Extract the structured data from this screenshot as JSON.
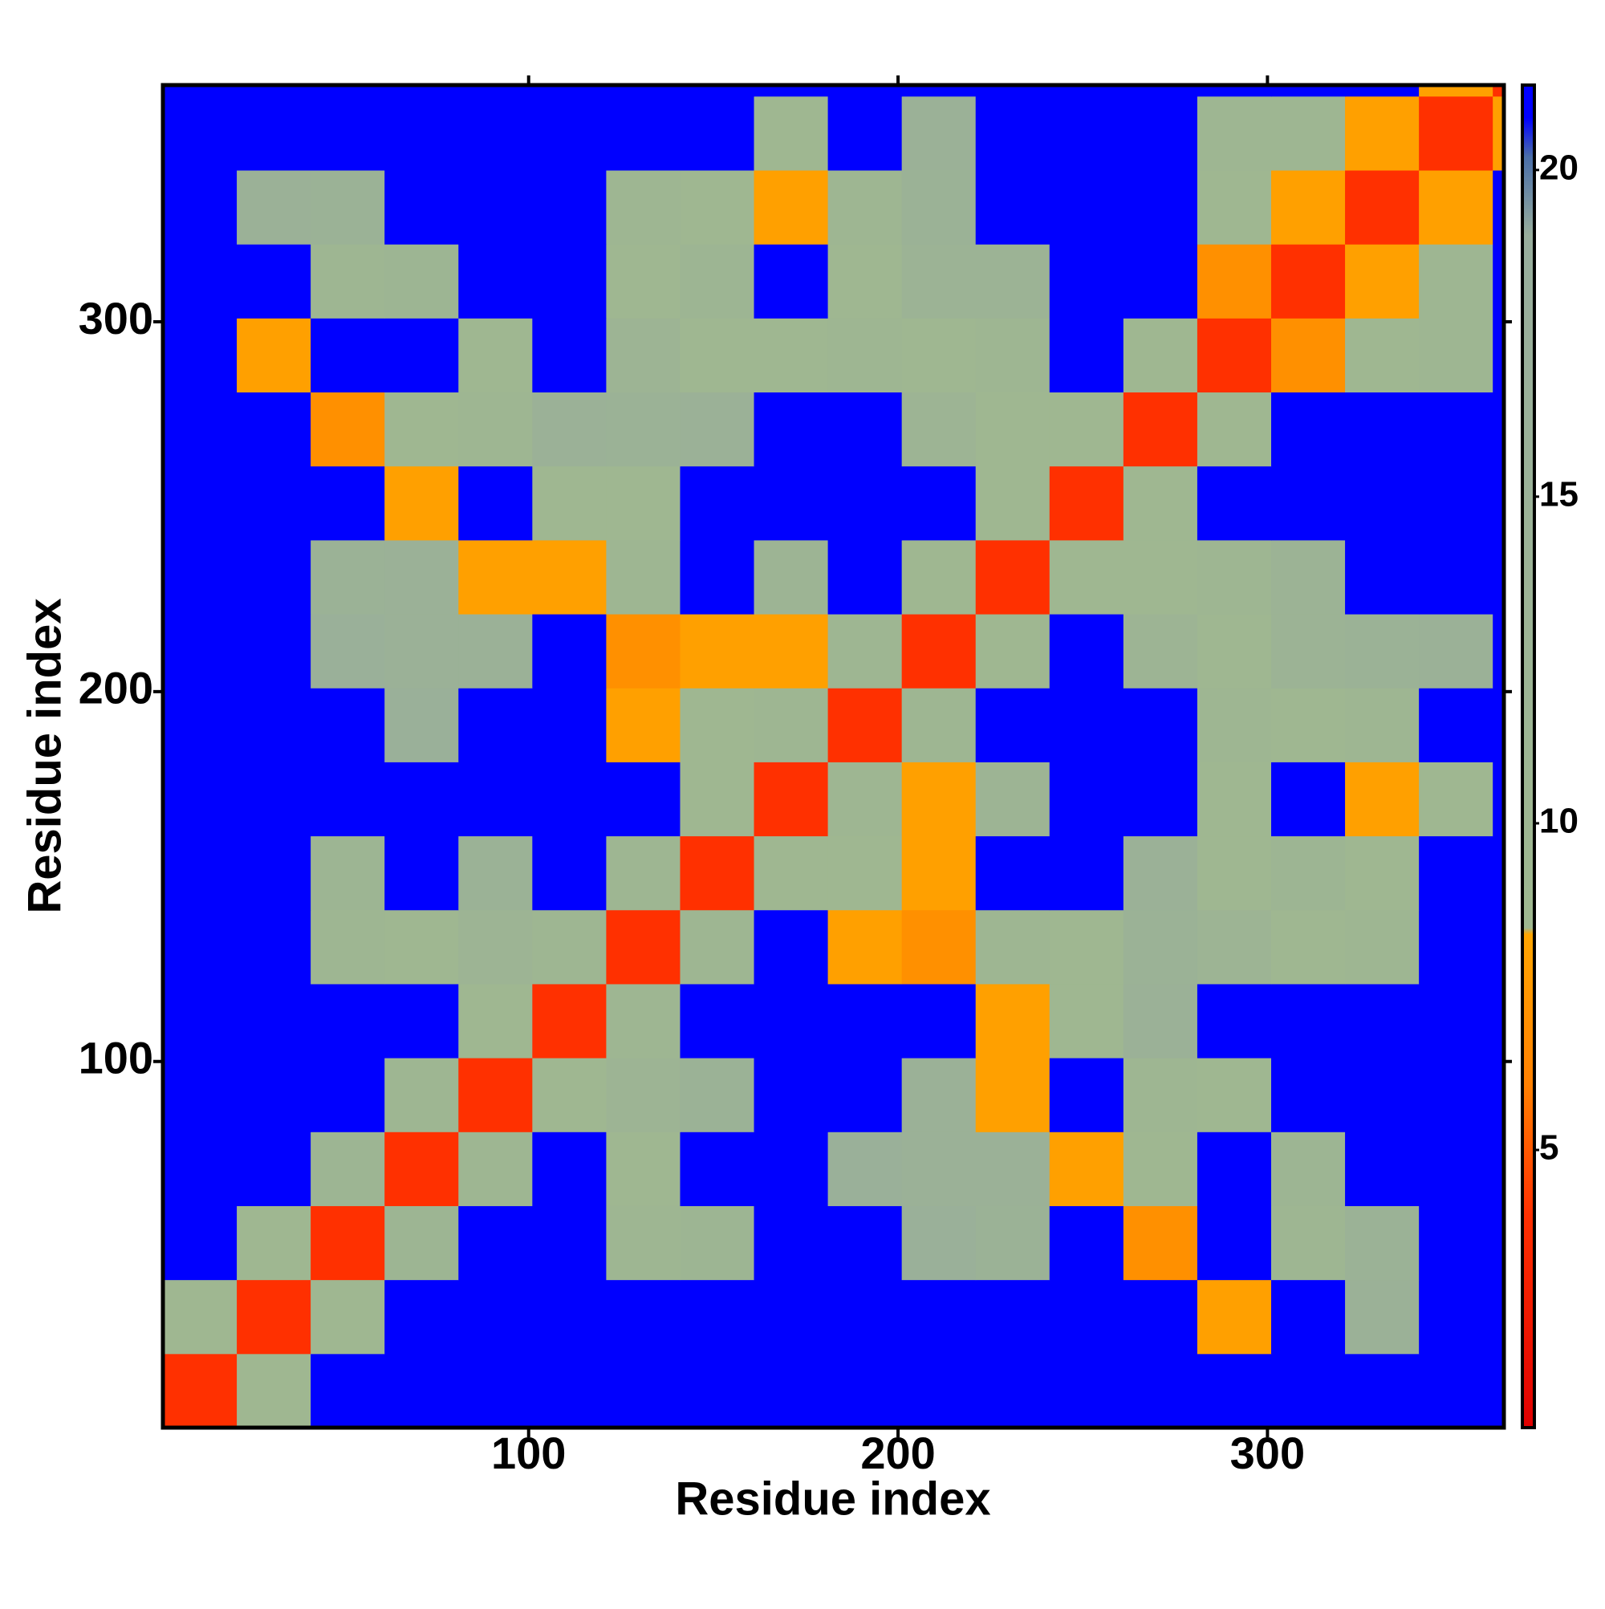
{
  "chart_data": {
    "type": "heatmap",
    "xlabel": "Residue index",
    "ylabel": "Residue index",
    "xlim": [
      1,
      364
    ],
    "ylim": [
      1,
      364
    ],
    "xticks": [
      100,
      200,
      300
    ],
    "yticks": [
      100,
      200,
      300
    ],
    "x_bins": [
      1,
      21,
      41,
      61,
      81,
      101,
      121,
      141,
      161,
      181,
      201,
      221,
      241,
      261,
      281,
      301,
      321,
      341,
      361,
      364
    ],
    "y_bins": [
      1,
      21,
      41,
      61,
      81,
      101,
      121,
      141,
      161,
      181,
      201,
      221,
      241,
      261,
      281,
      301,
      321,
      341,
      361,
      364
    ],
    "z": [
      [
        4,
        9,
        21,
        21,
        21,
        21,
        21,
        21,
        21,
        21,
        21,
        21,
        21,
        21,
        21,
        21,
        21,
        21,
        21
      ],
      [
        9,
        4,
        9,
        21,
        21,
        21,
        21,
        21,
        21,
        21,
        21,
        21,
        21,
        21,
        8,
        21,
        15,
        21,
        21
      ],
      [
        21,
        9,
        4,
        11,
        21,
        21,
        10,
        11,
        21,
        21,
        16,
        14,
        21,
        7,
        21,
        10,
        14,
        21,
        21
      ],
      [
        21,
        21,
        11,
        4,
        10,
        21,
        9,
        21,
        21,
        16,
        15,
        15,
        8,
        9,
        21,
        11,
        21,
        21,
        21
      ],
      [
        21,
        21,
        21,
        10,
        4,
        9,
        12,
        14,
        21,
        21,
        15,
        8,
        21,
        10,
        9,
        21,
        21,
        21,
        21
      ],
      [
        21,
        21,
        21,
        21,
        9,
        4,
        10,
        21,
        21,
        21,
        21,
        8,
        9,
        15,
        21,
        21,
        21,
        21,
        21
      ],
      [
        21,
        21,
        10,
        9,
        12,
        10,
        4,
        10,
        21,
        8,
        7,
        10,
        9,
        14,
        12,
        9,
        10,
        21,
        21
      ],
      [
        21,
        21,
        11,
        21,
        14,
        21,
        10,
        4,
        9,
        9,
        8,
        21,
        21,
        15,
        9,
        11,
        9,
        21,
        21
      ],
      [
        21,
        21,
        21,
        21,
        21,
        21,
        21,
        9,
        4,
        10,
        8,
        12,
        21,
        21,
        9,
        21,
        8,
        9,
        21
      ],
      [
        21,
        21,
        21,
        16,
        21,
        21,
        8,
        9,
        10,
        4,
        10,
        21,
        21,
        21,
        10,
        9,
        10,
        21,
        21
      ],
      [
        21,
        21,
        16,
        15,
        15,
        21,
        7,
        8,
        8,
        10,
        4,
        9,
        21,
        12,
        9,
        13,
        14,
        15,
        21
      ],
      [
        21,
        21,
        14,
        15,
        8,
        8,
        10,
        21,
        12,
        21,
        9,
        4,
        9,
        9,
        10,
        13,
        21,
        21,
        21
      ],
      [
        21,
        21,
        21,
        8,
        21,
        9,
        9,
        21,
        21,
        21,
        21,
        9,
        4,
        9,
        21,
        21,
        21,
        21,
        21
      ],
      [
        21,
        21,
        7,
        9,
        10,
        15,
        14,
        15,
        21,
        21,
        12,
        9,
        9,
        4,
        9,
        21,
        21,
        21,
        21
      ],
      [
        21,
        8,
        21,
        21,
        9,
        21,
        12,
        9,
        9,
        10,
        9,
        10,
        21,
        9,
        4,
        7,
        9,
        10,
        21
      ],
      [
        21,
        21,
        10,
        11,
        21,
        21,
        9,
        11,
        21,
        9,
        13,
        13,
        21,
        21,
        7,
        4,
        8,
        10,
        21
      ],
      [
        21,
        15,
        14,
        21,
        21,
        21,
        10,
        9,
        8,
        10,
        14,
        21,
        21,
        21,
        9,
        8,
        4,
        8,
        21
      ],
      [
        21,
        21,
        21,
        21,
        21,
        21,
        21,
        21,
        9,
        21,
        15,
        21,
        21,
        21,
        10,
        10,
        8,
        4,
        8
      ],
      [
        21,
        21,
        21,
        21,
        21,
        21,
        21,
        21,
        21,
        21,
        21,
        21,
        21,
        21,
        21,
        21,
        21,
        8,
        4
      ]
    ],
    "zlim": [
      0.75,
      21.3
    ],
    "zticks": [
      5,
      10,
      15,
      20
    ],
    "colorscale": [
      [
        0.75,
        "#e00000"
      ],
      [
        4,
        "#ff3000"
      ],
      [
        6,
        "#ff8000"
      ],
      [
        8.3,
        "#ffa500"
      ],
      [
        8.4,
        "#9fb890"
      ],
      [
        19,
        "#98ad9c"
      ],
      [
        20.2,
        "#4a6ea8"
      ],
      [
        20.8,
        "#0000ff"
      ]
    ]
  }
}
